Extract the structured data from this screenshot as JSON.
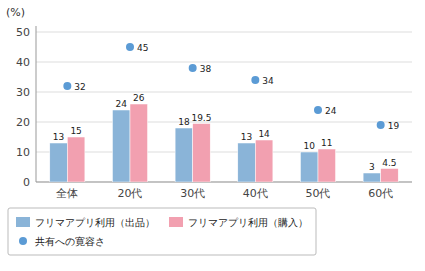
{
  "chart_data": {
    "type": "bar",
    "ylabel": "(%)",
    "categories": [
      "全体",
      "20代",
      "30代",
      "40代",
      "50代",
      "60代"
    ],
    "series": [
      {
        "name": "フリマアプリ利用（出品）",
        "type": "bar",
        "color": "#8ab4d8",
        "values": [
          13,
          24,
          18,
          13,
          10,
          3
        ]
      },
      {
        "name": "フリマアプリ利用（購入）",
        "type": "bar",
        "color": "#f2a0b0",
        "values": [
          15,
          26,
          19.5,
          14,
          11,
          4.5
        ]
      },
      {
        "name": "共有への寛容さ",
        "type": "scatter",
        "marker": "circle",
        "color": "#5b9bd5",
        "values": [
          32,
          45,
          38,
          34,
          24,
          19
        ]
      }
    ],
    "ylim": [
      0,
      52
    ],
    "yticks": [
      0,
      10,
      20,
      30,
      40,
      50
    ],
    "grid": true,
    "data_labels": true,
    "legend": "bottom"
  }
}
